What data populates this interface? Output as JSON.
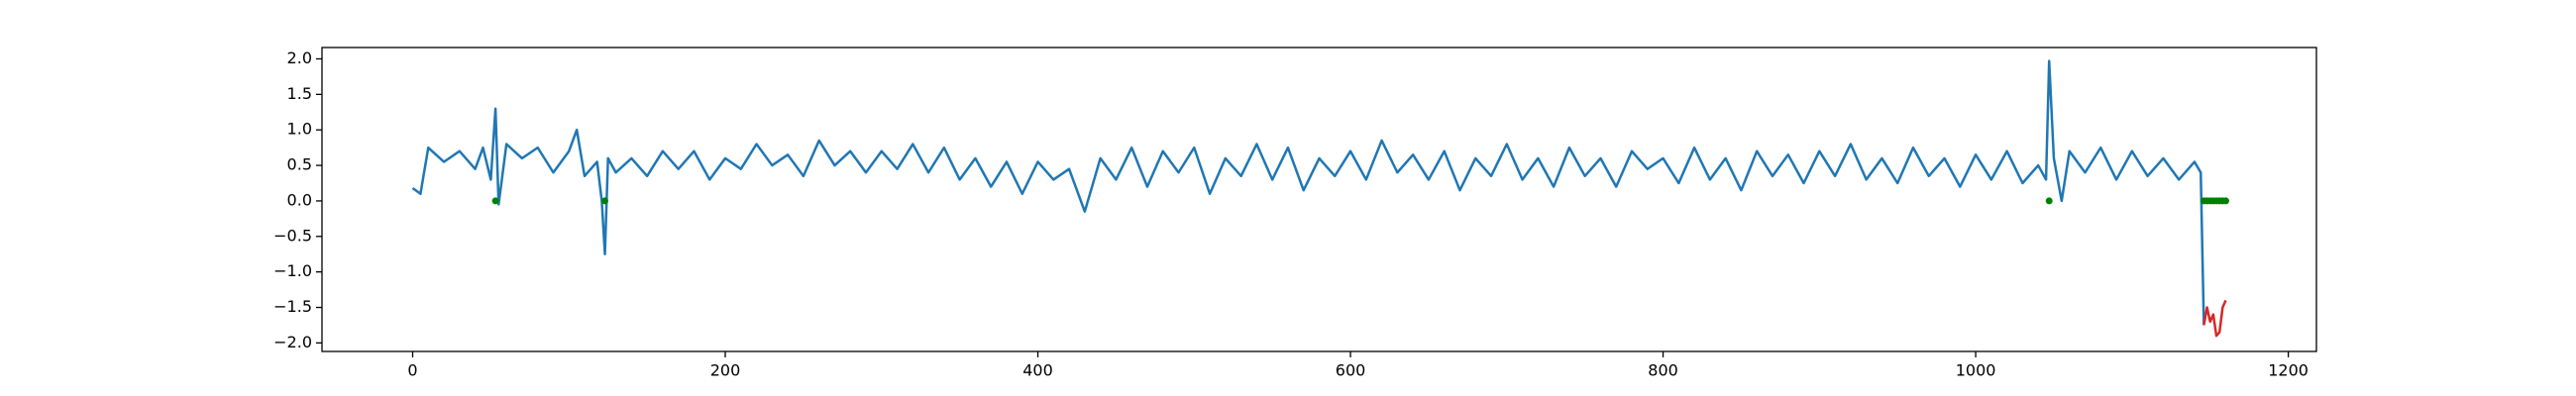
{
  "chart_data": {
    "type": "line",
    "xlim": [
      -58,
      1218
    ],
    "ylim": [
      -2.12,
      2.16
    ],
    "xticks": [
      0,
      200,
      400,
      600,
      800,
      1000,
      1200
    ],
    "yticks": [
      {
        "value": -2,
        "label": "−2.0"
      },
      {
        "value": -1.5,
        "label": "−1.5"
      },
      {
        "value": -1,
        "label": "−1.0"
      },
      {
        "value": -0.5,
        "label": "−0.5"
      },
      {
        "value": 0,
        "label": "0.0"
      },
      {
        "value": 0.5,
        "label": "0.5"
      },
      {
        "value": 1,
        "label": "1.0"
      },
      {
        "value": 1.5,
        "label": "1.5"
      },
      {
        "value": 2,
        "label": "2.0"
      }
    ],
    "series": [
      {
        "type": "line",
        "color": "#1f77b4",
        "x": [
          0,
          5,
          10,
          20,
          30,
          40,
          45,
          50,
          53,
          55,
          60,
          70,
          80,
          90,
          100,
          105,
          110,
          118,
          121,
          123,
          125,
          130,
          140,
          150,
          160,
          170,
          180,
          190,
          200,
          210,
          220,
          230,
          240,
          250,
          260,
          270,
          280,
          290,
          300,
          310,
          320,
          330,
          340,
          350,
          360,
          370,
          380,
          390,
          400,
          410,
          420,
          430,
          440,
          450,
          460,
          470,
          480,
          490,
          500,
          510,
          520,
          530,
          540,
          550,
          560,
          570,
          580,
          590,
          600,
          610,
          620,
          630,
          640,
          650,
          660,
          670,
          680,
          690,
          700,
          710,
          720,
          730,
          740,
          750,
          760,
          770,
          780,
          790,
          800,
          810,
          820,
          830,
          840,
          850,
          860,
          870,
          880,
          890,
          900,
          910,
          920,
          930,
          940,
          950,
          960,
          970,
          980,
          990,
          1000,
          1010,
          1020,
          1030,
          1040,
          1045,
          1047,
          1050,
          1055,
          1060,
          1070,
          1080,
          1090,
          1100,
          1110,
          1120,
          1130,
          1140,
          1144,
          1146
        ],
        "values": [
          0.18,
          0.1,
          0.75,
          0.55,
          0.7,
          0.45,
          0.75,
          0.3,
          1.3,
          -0.05,
          0.8,
          0.6,
          0.75,
          0.4,
          0.7,
          1.0,
          0.35,
          0.55,
          0.0,
          -0.75,
          0.6,
          0.4,
          0.6,
          0.35,
          0.7,
          0.45,
          0.7,
          0.3,
          0.6,
          0.45,
          0.8,
          0.5,
          0.65,
          0.35,
          0.85,
          0.5,
          0.7,
          0.4,
          0.7,
          0.45,
          0.8,
          0.4,
          0.75,
          0.3,
          0.6,
          0.2,
          0.55,
          0.1,
          0.55,
          0.3,
          0.45,
          -0.15,
          0.6,
          0.3,
          0.75,
          0.2,
          0.7,
          0.4,
          0.75,
          0.1,
          0.6,
          0.35,
          0.8,
          0.3,
          0.75,
          0.15,
          0.6,
          0.35,
          0.7,
          0.3,
          0.85,
          0.4,
          0.65,
          0.3,
          0.7,
          0.15,
          0.6,
          0.35,
          0.8,
          0.3,
          0.6,
          0.2,
          0.75,
          0.35,
          0.6,
          0.2,
          0.7,
          0.45,
          0.6,
          0.25,
          0.75,
          0.3,
          0.6,
          0.15,
          0.7,
          0.35,
          0.65,
          0.25,
          0.7,
          0.35,
          0.8,
          0.3,
          0.6,
          0.25,
          0.75,
          0.35,
          0.6,
          0.2,
          0.65,
          0.3,
          0.7,
          0.25,
          0.5,
          0.3,
          1.97,
          0.6,
          0.0,
          0.7,
          0.4,
          0.75,
          0.3,
          0.7,
          0.35,
          0.6,
          0.3,
          0.55,
          0.4,
          -1.75
        ]
      },
      {
        "type": "line",
        "color": "#d62728",
        "x": [
          1146,
          1148,
          1150,
          1152,
          1154,
          1156,
          1158,
          1160
        ],
        "values": [
          -1.75,
          -1.5,
          -1.7,
          -1.6,
          -1.9,
          -1.85,
          -1.5,
          -1.4
        ]
      },
      {
        "type": "scatter",
        "color": "#008000",
        "x": [
          53,
          123,
          1047,
          1146,
          1148,
          1150,
          1152,
          1154,
          1156,
          1158,
          1160
        ],
        "values": [
          0,
          0,
          0,
          0,
          0,
          0,
          0,
          0,
          0,
          0,
          0
        ]
      }
    ]
  }
}
